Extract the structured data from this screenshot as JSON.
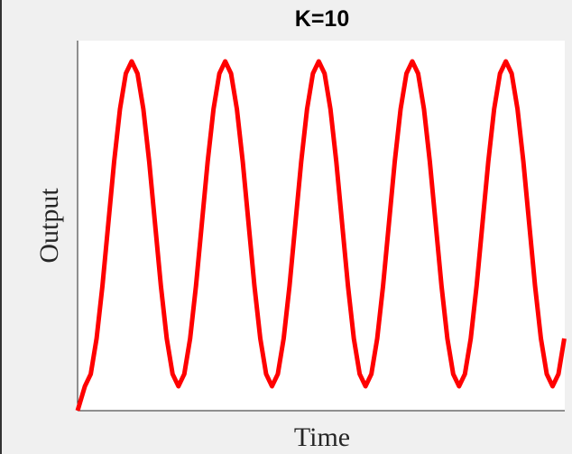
{
  "chart_data": {
    "type": "line",
    "title": "K=10",
    "xlabel": "Time",
    "ylabel": "Output",
    "xlim": [
      0,
      100
    ],
    "ylim": [
      0,
      100
    ],
    "x": [
      0,
      1.5,
      2.7,
      3.9,
      5.1,
      6.3,
      7.5,
      8.7,
      9.9,
      11.1,
      12.3,
      13.5,
      14.7,
      15.9,
      17.1,
      18.3,
      19.5,
      20.7,
      21.9,
      23.1,
      24.3,
      25.5,
      26.7,
      27.9,
      29.1,
      30.3,
      31.5,
      32.7,
      33.9,
      35.1,
      36.3,
      37.5,
      38.7,
      39.9,
      41.1,
      42.3,
      43.5,
      44.7,
      45.9,
      47.1,
      48.3,
      49.5,
      50.7,
      51.9,
      53.1,
      54.3,
      55.5,
      56.7,
      57.9,
      59.1,
      60.3,
      61.5,
      62.7,
      63.9,
      65.1,
      66.3,
      67.5,
      68.7,
      69.9,
      71.1,
      72.3,
      73.5,
      74.7,
      75.9,
      77.1,
      78.3,
      79.5,
      80.7,
      81.9,
      83.1,
      84.3,
      85.5,
      86.7,
      87.9,
      89.1,
      90.3,
      91.5,
      92.7,
      93.9,
      95.1,
      96.3,
      97.5,
      98.7,
      99.9
    ],
    "series": [
      {
        "color": "#ff0000",
        "values": [
          0,
          6.6,
          9.9,
          19.5,
          33.7,
          50.5,
          67.3,
          81.5,
          91.1,
          94.4,
          91.1,
          81.5,
          67.3,
          50.5,
          33.7,
          19.5,
          9.9,
          6.6,
          9.9,
          19.5,
          33.7,
          50.5,
          67.3,
          81.5,
          91.1,
          94.4,
          91.1,
          81.5,
          67.3,
          50.5,
          33.7,
          19.5,
          9.9,
          6.6,
          9.9,
          19.5,
          33.7,
          50.5,
          67.3,
          81.5,
          91.1,
          94.4,
          91.1,
          81.5,
          67.3,
          50.5,
          33.7,
          19.5,
          9.9,
          6.6,
          9.9,
          19.5,
          33.7,
          50.5,
          67.3,
          81.5,
          91.1,
          94.4,
          91.1,
          81.5,
          67.3,
          50.5,
          33.7,
          19.5,
          9.9,
          6.6,
          9.9,
          19.5,
          33.7,
          50.5,
          67.3,
          81.5,
          91.1,
          94.4,
          91.1,
          81.5,
          67.3,
          50.5,
          33.7,
          19.5,
          9.9,
          6.6,
          9.9,
          19.5
        ]
      }
    ]
  }
}
